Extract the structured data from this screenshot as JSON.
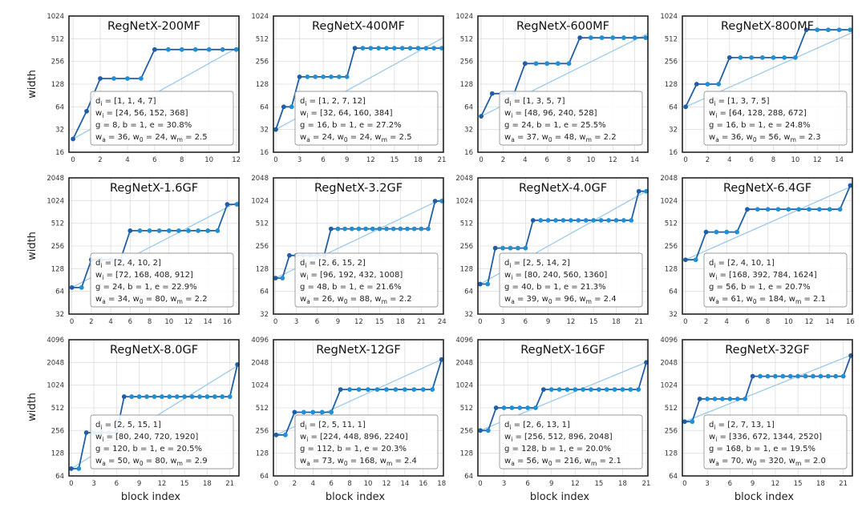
{
  "figure": {
    "ylabel": "width",
    "xlabel": "block index"
  },
  "colors": {
    "step_line": "#1f5fa8",
    "dot": "#1f8fd6",
    "fit_line": "#9cc9ea",
    "grid": "#dddddd"
  },
  "chart_data": [
    {
      "type": "line",
      "title": "RegNetX-200MF",
      "yscale": "log2",
      "ylim": [
        16,
        1024
      ],
      "yticks": [
        16,
        32,
        64,
        128,
        256,
        512,
        1024
      ],
      "xlim": [
        -0.3,
        12.2
      ],
      "xticks": [
        0,
        2,
        4,
        6,
        8,
        10,
        12
      ],
      "series": [
        {
          "x": [
            0,
            1,
            2,
            3,
            4,
            5,
            6,
            7,
            8,
            9,
            10,
            11,
            12
          ],
          "values": [
            24,
            56,
            152,
            152,
            152,
            152,
            368,
            368,
            368,
            368,
            368,
            368,
            368
          ]
        }
      ],
      "fit": {
        "x": [
          0,
          12.2
        ],
        "values": [
          24,
          400
        ]
      },
      "annotation": [
        "d_i = [1, 1, 4, 7]",
        "w_i = [24, 56, 152, 368]",
        "g = 8, b = 1, e = 30.8%",
        "w_a = 36, w_0 = 24, w_m = 2.5"
      ]
    },
    {
      "type": "line",
      "title": "RegNetX-400MF",
      "yscale": "log2",
      "ylim": [
        16,
        1024
      ],
      "yticks": [
        16,
        32,
        64,
        128,
        256,
        512,
        1024
      ],
      "xlim": [
        -0.3,
        21.2
      ],
      "xticks": [
        0,
        3,
        6,
        9,
        12,
        15,
        18,
        21
      ],
      "series": [
        {
          "x": [
            0,
            1,
            2,
            3,
            4,
            5,
            6,
            7,
            8,
            9,
            10,
            11,
            12,
            13,
            14,
            15,
            16,
            17,
            18,
            19,
            20,
            21
          ],
          "values": [
            32,
            64,
            64,
            160,
            160,
            160,
            160,
            160,
            160,
            160,
            384,
            384,
            384,
            384,
            384,
            384,
            384,
            384,
            384,
            384,
            384,
            384
          ]
        }
      ],
      "fit": {
        "x": [
          0,
          21.2
        ],
        "values": [
          32,
          530
        ]
      },
      "annotation": [
        "d_i = [1, 2, 7, 12]",
        "w_i = [32, 64, 160, 384]",
        "g = 16, b = 1, e = 27.2%",
        "w_a = 24, w_0 = 24, w_m = 2.5"
      ]
    },
    {
      "type": "line",
      "title": "RegNetX-600MF",
      "yscale": "log2",
      "ylim": [
        16,
        1024
      ],
      "yticks": [
        16,
        32,
        64,
        128,
        256,
        512,
        1024
      ],
      "xlim": [
        -0.3,
        15.2
      ],
      "xticks": [
        0,
        2,
        4,
        6,
        8,
        10,
        12,
        14
      ],
      "series": [
        {
          "x": [
            0,
            1,
            2,
            3,
            4,
            5,
            6,
            7,
            8,
            9,
            10,
            11,
            12,
            13,
            14,
            15
          ],
          "values": [
            48,
            96,
            96,
            96,
            240,
            240,
            240,
            240,
            240,
            528,
            528,
            528,
            528,
            528,
            528,
            528
          ]
        }
      ],
      "fit": {
        "x": [
          0,
          15.2
        ],
        "values": [
          48,
          600
        ]
      },
      "annotation": [
        "d_i = [1, 3, 5, 7]",
        "w_i = [48, 96, 240, 528]",
        "g = 24, b = 1, e = 25.5%",
        "w_a = 37, w_0 = 48, w_m = 2.2"
      ]
    },
    {
      "type": "line",
      "title": "RegNetX-800MF",
      "yscale": "log2",
      "ylim": [
        16,
        1024
      ],
      "yticks": [
        16,
        32,
        64,
        128,
        256,
        512,
        1024
      ],
      "xlim": [
        -0.3,
        15.2
      ],
      "xticks": [
        0,
        2,
        4,
        6,
        8,
        10,
        12,
        14
      ],
      "series": [
        {
          "x": [
            0,
            1,
            2,
            3,
            4,
            5,
            6,
            7,
            8,
            9,
            10,
            11,
            12,
            13,
            14,
            15
          ],
          "values": [
            64,
            128,
            128,
            128,
            288,
            288,
            288,
            288,
            288,
            288,
            288,
            672,
            672,
            672,
            672,
            672
          ]
        }
      ],
      "fit": {
        "x": [
          0,
          15.2
        ],
        "values": [
          64,
          620
        ]
      },
      "annotation": [
        "d_i = [1, 3, 7, 5]",
        "w_i = [64, 128, 288, 672]",
        "g = 16, b = 1, e = 24.8%",
        "w_a = 36, w_0 = 56, w_m = 2.3"
      ]
    },
    {
      "type": "line",
      "title": "RegNetX-1.6GF",
      "yscale": "log2",
      "ylim": [
        32,
        2048
      ],
      "yticks": [
        32,
        64,
        128,
        256,
        512,
        1024,
        2048
      ],
      "xlim": [
        -0.3,
        17.2
      ],
      "xticks": [
        0,
        2,
        4,
        6,
        8,
        10,
        12,
        14,
        16
      ],
      "series": [
        {
          "x": [
            0,
            1,
            2,
            3,
            4,
            5,
            6,
            7,
            8,
            9,
            10,
            11,
            12,
            13,
            14,
            15,
            16,
            17
          ],
          "values": [
            72,
            72,
            168,
            168,
            168,
            168,
            408,
            408,
            408,
            408,
            408,
            408,
            408,
            408,
            408,
            408,
            912,
            912
          ]
        }
      ],
      "fit": {
        "x": [
          0,
          17.2
        ],
        "values": [
          72,
          1000
        ]
      },
      "annotation": [
        "d_i = [2, 4, 10, 2]",
        "w_i = [72, 168, 408, 912]",
        "g = 24, b = 1, e = 22.9%",
        "w_a = 34, w_0 = 80, w_m = 2.2"
      ]
    },
    {
      "type": "line",
      "title": "RegNetX-3.2GF",
      "yscale": "log2",
      "ylim": [
        32,
        2048
      ],
      "yticks": [
        32,
        64,
        128,
        256,
        512,
        1024,
        2048
      ],
      "xlim": [
        -0.3,
        24.2
      ],
      "xticks": [
        0,
        3,
        6,
        9,
        12,
        15,
        18,
        21,
        24
      ],
      "series": [
        {
          "x": [
            0,
            1,
            2,
            3,
            4,
            5,
            6,
            7,
            8,
            9,
            10,
            11,
            12,
            13,
            14,
            15,
            16,
            17,
            18,
            19,
            20,
            21,
            22,
            23,
            24
          ],
          "values": [
            96,
            96,
            192,
            192,
            192,
            192,
            192,
            192,
            432,
            432,
            432,
            432,
            432,
            432,
            432,
            432,
            432,
            432,
            432,
            432,
            432,
            432,
            432,
            1008,
            1008
          ]
        }
      ],
      "fit": {
        "x": [
          0,
          24.2
        ],
        "values": [
          96,
          1100
        ]
      },
      "annotation": [
        "d_i = [2, 6, 15, 2]",
        "w_i = [96, 192, 432, 1008]",
        "g = 48, b = 1, e = 21.6%",
        "w_a = 26, w_0 = 88, w_m = 2.2"
      ]
    },
    {
      "type": "line",
      "title": "RegNetX-4.0GF",
      "yscale": "log2",
      "ylim": [
        32,
        2048
      ],
      "yticks": [
        32,
        64,
        128,
        256,
        512,
        1024,
        2048
      ],
      "xlim": [
        -0.3,
        22.2
      ],
      "xticks": [
        0,
        3,
        6,
        9,
        12,
        15,
        18,
        21
      ],
      "series": [
        {
          "x": [
            0,
            1,
            2,
            3,
            4,
            5,
            6,
            7,
            8,
            9,
            10,
            11,
            12,
            13,
            14,
            15,
            16,
            17,
            18,
            19,
            20,
            21,
            22
          ],
          "values": [
            80,
            80,
            240,
            240,
            240,
            240,
            240,
            560,
            560,
            560,
            560,
            560,
            560,
            560,
            560,
            560,
            560,
            560,
            560,
            560,
            560,
            1360,
            1360
          ]
        }
      ],
      "fit": {
        "x": [
          0,
          22.2
        ],
        "values": [
          80,
          1400
        ]
      },
      "annotation": [
        "d_i = [2, 5, 14, 2]",
        "w_i = [80, 240, 560, 1360]",
        "g = 40, b = 1, e = 21.3%",
        "w_a = 39, w_0 = 96, w_m = 2.4"
      ]
    },
    {
      "type": "line",
      "title": "RegNetX-6.4GF",
      "yscale": "log2",
      "ylim": [
        32,
        2048
      ],
      "yticks": [
        32,
        64,
        128,
        256,
        512,
        1024,
        2048
      ],
      "xlim": [
        -0.3,
        16.2
      ],
      "xticks": [
        0,
        2,
        4,
        6,
        8,
        10,
        12,
        14,
        16
      ],
      "series": [
        {
          "x": [
            0,
            1,
            2,
            3,
            4,
            5,
            6,
            7,
            8,
            9,
            10,
            11,
            12,
            13,
            14,
            15,
            16
          ],
          "values": [
            168,
            168,
            392,
            392,
            392,
            392,
            784,
            784,
            784,
            784,
            784,
            784,
            784,
            784,
            784,
            784,
            1624
          ]
        }
      ],
      "fit": {
        "x": [
          0,
          16.2
        ],
        "values": [
          168,
          1600
        ]
      },
      "annotation": [
        "d_i = [2, 4, 10, 1]",
        "w_i = [168, 392, 784, 1624]",
        "g = 56, b = 1, e = 20.7%",
        "w_a = 61, w_0 = 184, w_m = 2.1"
      ]
    },
    {
      "type": "line",
      "title": "RegNetX-8.0GF",
      "yscale": "log2",
      "ylim": [
        64,
        4096
      ],
      "yticks": [
        64,
        128,
        256,
        512,
        1024,
        2048,
        4096
      ],
      "xlim": [
        -0.3,
        22.2
      ],
      "xticks": [
        0,
        3,
        6,
        9,
        12,
        15,
        18,
        21
      ],
      "series": [
        {
          "x": [
            0,
            1,
            2,
            3,
            4,
            5,
            6,
            7,
            8,
            9,
            10,
            11,
            12,
            13,
            14,
            15,
            16,
            17,
            18,
            19,
            20,
            21,
            22
          ],
          "values": [
            80,
            80,
            240,
            240,
            240,
            240,
            240,
            720,
            720,
            720,
            720,
            720,
            720,
            720,
            720,
            720,
            720,
            720,
            720,
            720,
            720,
            720,
            1920
          ]
        }
      ],
      "fit": {
        "x": [
          0,
          22.2
        ],
        "values": [
          80,
          1900
        ]
      },
      "annotation": [
        "d_i = [2, 5, 15, 1]",
        "w_i = [80, 240, 720, 1920]",
        "g = 120, b = 1, e = 20.5%",
        "w_a = 50, w_0 = 80, w_m = 2.9"
      ]
    },
    {
      "type": "line",
      "title": "RegNetX-12GF",
      "yscale": "log2",
      "ylim": [
        64,
        4096
      ],
      "yticks": [
        64,
        128,
        256,
        512,
        1024,
        2048,
        4096
      ],
      "xlim": [
        -0.3,
        18.2
      ],
      "xticks": [
        0,
        2,
        4,
        6,
        8,
        10,
        12,
        14,
        16,
        18
      ],
      "series": [
        {
          "x": [
            0,
            1,
            2,
            3,
            4,
            5,
            6,
            7,
            8,
            9,
            10,
            11,
            12,
            13,
            14,
            15,
            16,
            17,
            18
          ],
          "values": [
            224,
            224,
            448,
            448,
            448,
            448,
            448,
            896,
            896,
            896,
            896,
            896,
            896,
            896,
            896,
            896,
            896,
            896,
            2240
          ]
        }
      ],
      "fit": {
        "x": [
          0,
          18.2
        ],
        "values": [
          224,
          2300
        ]
      },
      "annotation": [
        "d_i = [2, 5, 11, 1]",
        "w_i = [224, 448, 896, 2240]",
        "g = 112, b = 1, e = 20.3%",
        "w_a = 73, w_0 = 168, w_m = 2.4"
      ]
    },
    {
      "type": "line",
      "title": "RegNetX-16GF",
      "yscale": "log2",
      "ylim": [
        64,
        4096
      ],
      "yticks": [
        64,
        128,
        256,
        512,
        1024,
        2048,
        4096
      ],
      "xlim": [
        -0.3,
        21.2
      ],
      "xticks": [
        0,
        3,
        6,
        9,
        12,
        15,
        18,
        21
      ],
      "series": [
        {
          "x": [
            0,
            1,
            2,
            3,
            4,
            5,
            6,
            7,
            8,
            9,
            10,
            11,
            12,
            13,
            14,
            15,
            16,
            17,
            18,
            19,
            20,
            21
          ],
          "values": [
            256,
            256,
            512,
            512,
            512,
            512,
            512,
            512,
            896,
            896,
            896,
            896,
            896,
            896,
            896,
            896,
            896,
            896,
            896,
            896,
            896,
            2048
          ]
        }
      ],
      "fit": {
        "x": [
          0,
          21.2
        ],
        "values": [
          256,
          2100
        ]
      },
      "annotation": [
        "d_i = [2, 6, 13, 1]",
        "w_i = [256, 512, 896, 2048]",
        "g = 128, b = 1, e = 20.0%",
        "w_a = 56, w_0 = 216, w_m = 2.1"
      ]
    },
    {
      "type": "line",
      "title": "RegNetX-32GF",
      "yscale": "log2",
      "ylim": [
        64,
        4096
      ],
      "yticks": [
        64,
        128,
        256,
        512,
        1024,
        2048,
        4096
      ],
      "xlim": [
        -0.3,
        22.2
      ],
      "xticks": [
        0,
        3,
        6,
        9,
        12,
        15,
        18,
        21
      ],
      "series": [
        {
          "x": [
            0,
            1,
            2,
            3,
            4,
            5,
            6,
            7,
            8,
            9,
            10,
            11,
            12,
            13,
            14,
            15,
            16,
            17,
            18,
            19,
            20,
            21,
            22
          ],
          "values": [
            336,
            336,
            672,
            672,
            672,
            672,
            672,
            672,
            672,
            1344,
            1344,
            1344,
            1344,
            1344,
            1344,
            1344,
            1344,
            1344,
            1344,
            1344,
            1344,
            1344,
            2520
          ]
        }
      ],
      "fit": {
        "x": [
          0,
          22.2
        ],
        "values": [
          336,
          2600
        ]
      },
      "annotation": [
        "d_i = [2, 7, 13, 1]",
        "w_i = [336, 672, 1344, 2520]",
        "g = 168, b = 1, e = 19.5%",
        "w_a = 70, w_0 = 320, w_m = 2.0"
      ]
    }
  ]
}
